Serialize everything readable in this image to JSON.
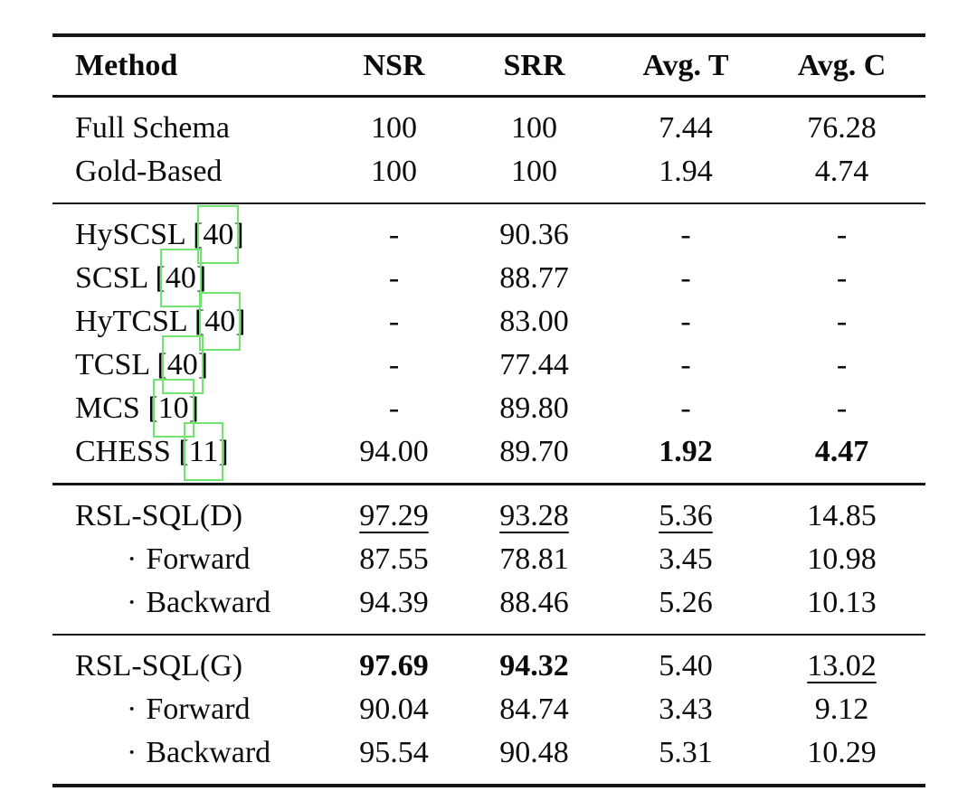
{
  "accent_colors": {
    "link_annotation_green": "#71e471",
    "rule_black": "#161616",
    "text_black": "#0b0b0b"
  },
  "table": {
    "columns": [
      "Method",
      "NSR",
      "SRR",
      "Avg. T",
      "Avg. C"
    ],
    "indent_marker": "·",
    "citation_bracket_open": "[",
    "citation_bracket_close": "]",
    "sections": [
      {
        "rows": [
          {
            "label": "Full Schema",
            "indent": false,
            "cite": null,
            "values": [
              {
                "text": "100",
                "style": "normal"
              },
              {
                "text": "100",
                "style": "normal"
              },
              {
                "text": "7.44",
                "style": "normal"
              },
              {
                "text": "76.28",
                "style": "normal"
              }
            ]
          },
          {
            "label": "Gold-Based",
            "indent": false,
            "cite": null,
            "values": [
              {
                "text": "100",
                "style": "normal"
              },
              {
                "text": "100",
                "style": "normal"
              },
              {
                "text": "1.94",
                "style": "normal"
              },
              {
                "text": "4.74",
                "style": "normal"
              }
            ]
          }
        ]
      },
      {
        "rows": [
          {
            "label": "HySCSL",
            "indent": false,
            "cite": "40",
            "values": [
              {
                "text": "-",
                "style": "normal"
              },
              {
                "text": "90.36",
                "style": "normal"
              },
              {
                "text": "-",
                "style": "normal"
              },
              {
                "text": "-",
                "style": "normal"
              }
            ]
          },
          {
            "label": "SCSL",
            "indent": false,
            "cite": "40",
            "values": [
              {
                "text": "-",
                "style": "normal"
              },
              {
                "text": "88.77",
                "style": "normal"
              },
              {
                "text": "-",
                "style": "normal"
              },
              {
                "text": "-",
                "style": "normal"
              }
            ]
          },
          {
            "label": "HyTCSL",
            "indent": false,
            "cite": "40",
            "values": [
              {
                "text": "-",
                "style": "normal"
              },
              {
                "text": "83.00",
                "style": "normal"
              },
              {
                "text": "-",
                "style": "normal"
              },
              {
                "text": "-",
                "style": "normal"
              }
            ]
          },
          {
            "label": "TCSL",
            "indent": false,
            "cite": "40",
            "values": [
              {
                "text": "-",
                "style": "normal"
              },
              {
                "text": "77.44",
                "style": "normal"
              },
              {
                "text": "-",
                "style": "normal"
              },
              {
                "text": "-",
                "style": "normal"
              }
            ]
          },
          {
            "label": "MCS",
            "indent": false,
            "cite": "10",
            "values": [
              {
                "text": "-",
                "style": "normal"
              },
              {
                "text": "89.80",
                "style": "normal"
              },
              {
                "text": "-",
                "style": "normal"
              },
              {
                "text": "-",
                "style": "normal"
              }
            ]
          },
          {
            "label": "CHESS",
            "indent": false,
            "cite": "11",
            "values": [
              {
                "text": "94.00",
                "style": "normal"
              },
              {
                "text": "89.70",
                "style": "normal"
              },
              {
                "text": "1.92",
                "style": "bold"
              },
              {
                "text": "4.47",
                "style": "bold"
              }
            ]
          }
        ]
      },
      {
        "rows": [
          {
            "label": "RSL-SQL(D)",
            "indent": false,
            "cite": null,
            "values": [
              {
                "text": "97.29",
                "style": "underline"
              },
              {
                "text": "93.28",
                "style": "underline"
              },
              {
                "text": "5.36",
                "style": "underline"
              },
              {
                "text": "14.85",
                "style": "normal"
              }
            ]
          },
          {
            "label": "Forward",
            "indent": true,
            "cite": null,
            "values": [
              {
                "text": "87.55",
                "style": "normal"
              },
              {
                "text": "78.81",
                "style": "normal"
              },
              {
                "text": "3.45",
                "style": "normal"
              },
              {
                "text": "10.98",
                "style": "normal"
              }
            ]
          },
          {
            "label": "Backward",
            "indent": true,
            "cite": null,
            "values": [
              {
                "text": "94.39",
                "style": "normal"
              },
              {
                "text": "88.46",
                "style": "normal"
              },
              {
                "text": "5.26",
                "style": "normal"
              },
              {
                "text": "10.13",
                "style": "normal"
              }
            ]
          }
        ]
      },
      {
        "rows": [
          {
            "label": "RSL-SQL(G)",
            "indent": false,
            "cite": null,
            "values": [
              {
                "text": "97.69",
                "style": "bold"
              },
              {
                "text": "94.32",
                "style": "bold"
              },
              {
                "text": "5.40",
                "style": "normal"
              },
              {
                "text": "13.02",
                "style": "underline"
              }
            ]
          },
          {
            "label": "Forward",
            "indent": true,
            "cite": null,
            "values": [
              {
                "text": "90.04",
                "style": "normal"
              },
              {
                "text": "84.74",
                "style": "normal"
              },
              {
                "text": "3.43",
                "style": "normal"
              },
              {
                "text": "9.12",
                "style": "normal"
              }
            ]
          },
          {
            "label": "Backward",
            "indent": true,
            "cite": null,
            "values": [
              {
                "text": "95.54",
                "style": "normal"
              },
              {
                "text": "90.48",
                "style": "normal"
              },
              {
                "text": "5.31",
                "style": "normal"
              },
              {
                "text": "10.29",
                "style": "normal"
              }
            ]
          }
        ]
      }
    ]
  }
}
